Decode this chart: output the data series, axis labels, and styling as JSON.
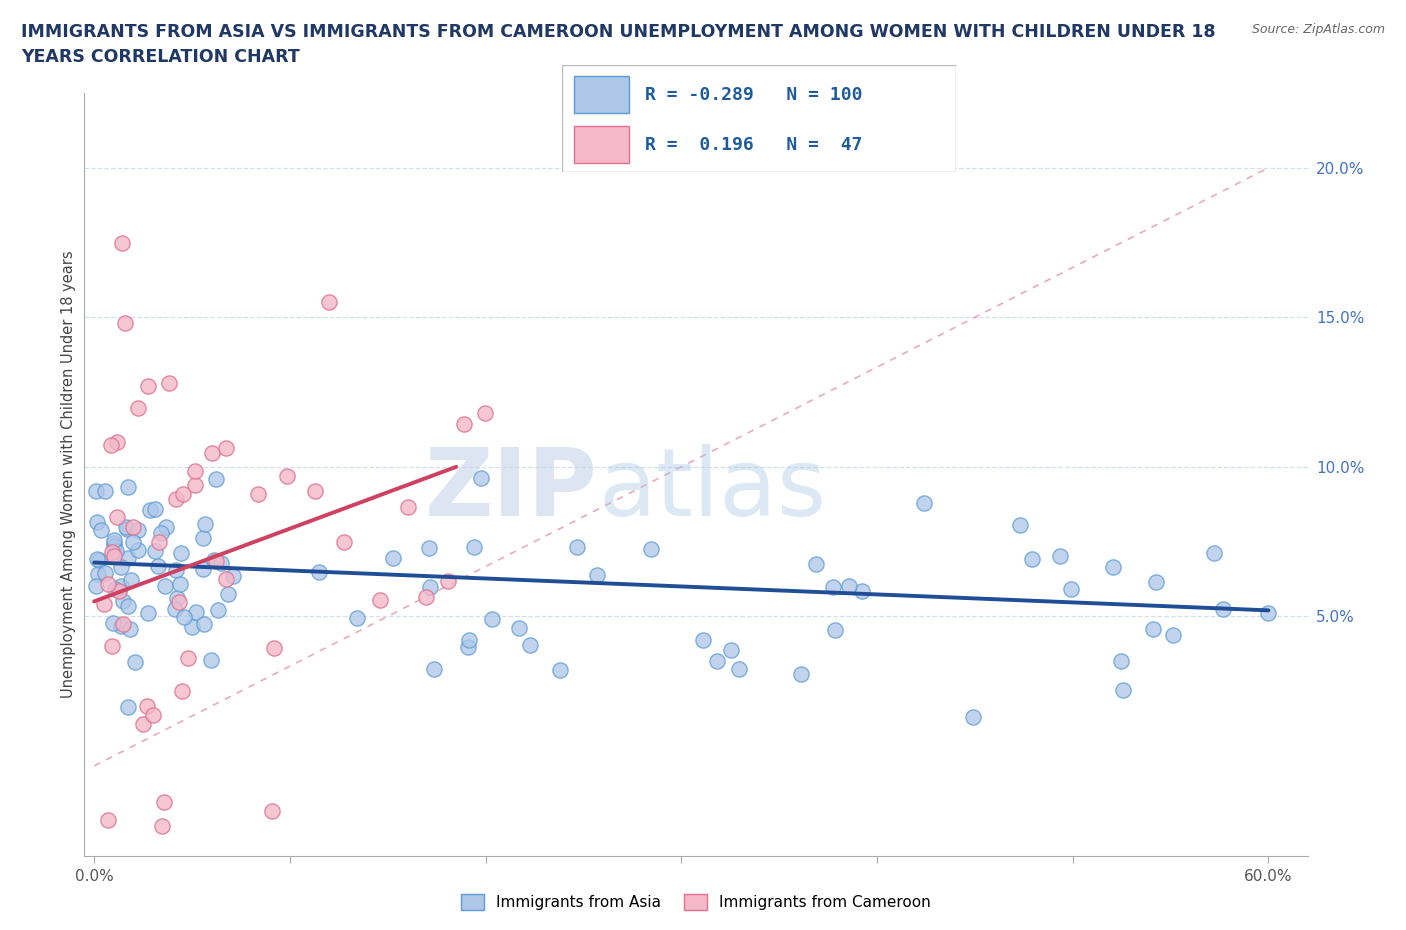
{
  "title_line1": "IMMIGRANTS FROM ASIA VS IMMIGRANTS FROM CAMEROON UNEMPLOYMENT AMONG WOMEN WITH CHILDREN UNDER 18",
  "title_line2": "YEARS CORRELATION CHART",
  "source_text": "Source: ZipAtlas.com",
  "watermark_zip": "ZIP",
  "watermark_atlas": "atlas",
  "ylabel": "Unemployment Among Women with Children Under 18 years",
  "xlim": [
    -0.005,
    0.62
  ],
  "ylim": [
    -0.03,
    0.225
  ],
  "xticks": [
    0.0,
    0.1,
    0.2,
    0.3,
    0.4,
    0.5,
    0.6
  ],
  "xtick_labels": [
    "0.0%",
    "",
    "",
    "",
    "",
    "",
    "60.0%"
  ],
  "yticks_right": [
    0.05,
    0.1,
    0.15,
    0.2
  ],
  "ytick_labels_right": [
    "5.0%",
    "10.0%",
    "15.0%",
    "20.0%"
  ],
  "asia_color": "#aec6e8",
  "asia_edge_color": "#5b9bd5",
  "cameroon_color": "#f4b8c8",
  "cameroon_edge_color": "#e07090",
  "trend_asia_color": "#1f4e96",
  "trend_cameroon_color": "#d04060",
  "diag_line_color": "#e08898",
  "grid_color": "#c8d8e8",
  "legend_r_asia": "-0.289",
  "legend_n_asia": "100",
  "legend_r_cameroon": "0.196",
  "legend_n_cameroon": "47",
  "title_color": "#1f3864",
  "axis_label_color": "#444444",
  "right_tick_color": "#4472c4",
  "source_color": "#666666",
  "legend_text_color": "#1f5c9e"
}
